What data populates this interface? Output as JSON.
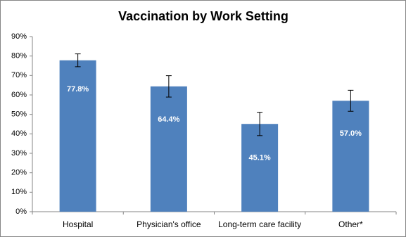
{
  "chart_data": {
    "type": "bar",
    "title": "Vaccination by Work Setting",
    "categories": [
      "Hospital",
      "Physician's office",
      "Long-term care facility",
      "Other*"
    ],
    "values": [
      77.8,
      64.4,
      45.1,
      57.0
    ],
    "value_labels": [
      "77.8%",
      "64.4%",
      "45.1%",
      "57.0%"
    ],
    "errors": [
      3.3,
      5.5,
      6.0,
      5.4
    ],
    "color": "#4f81bd",
    "ylim": [
      0,
      90
    ],
    "yticks": [
      {
        "value": 0,
        "label": "0%"
      },
      {
        "value": 10,
        "label": "10%"
      },
      {
        "value": 20,
        "label": "20%"
      },
      {
        "value": 30,
        "label": "30%"
      },
      {
        "value": 40,
        "label": "40%"
      },
      {
        "value": 50,
        "label": "50%"
      },
      {
        "value": 60,
        "label": "60%"
      },
      {
        "value": 70,
        "label": "70%"
      },
      {
        "value": 80,
        "label": "80%"
      },
      {
        "value": 90,
        "label": "90%"
      }
    ],
    "grid": false
  }
}
